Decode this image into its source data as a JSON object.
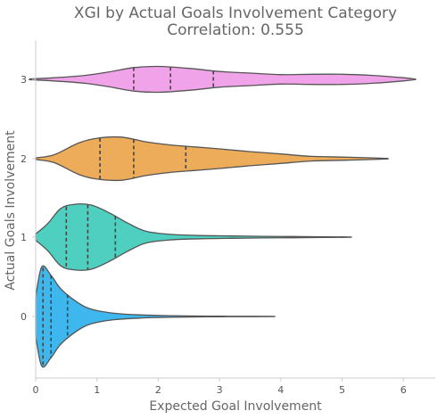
{
  "chart_data": {
    "type": "violin",
    "title": "XGI by Actual Goals Involvement Category",
    "subtitle": "Correlation: 0.555",
    "xlabel": "Expected Goal Involvement",
    "ylabel": "Actual Goals Involvement",
    "xlim": [
      0,
      6.5
    ],
    "x_ticks": [
      0,
      1,
      2,
      3,
      4,
      5,
      6
    ],
    "grid": false,
    "categories": [
      "3",
      "2",
      "1",
      "0"
    ],
    "series": [
      {
        "category": "3",
        "color": "#f0a3e8",
        "min": -0.1,
        "max": 6.2,
        "quartiles": [
          1.6,
          2.2,
          2.9
        ],
        "density": [
          [
            -0.1,
            0.01
          ],
          [
            0.3,
            0.04
          ],
          [
            0.8,
            0.1
          ],
          [
            1.2,
            0.19
          ],
          [
            1.6,
            0.3
          ],
          [
            2.0,
            0.33
          ],
          [
            2.5,
            0.28
          ],
          [
            3.0,
            0.2
          ],
          [
            3.5,
            0.16
          ],
          [
            4.0,
            0.12
          ],
          [
            4.5,
            0.13
          ],
          [
            5.0,
            0.13
          ],
          [
            5.5,
            0.1
          ],
          [
            6.0,
            0.04
          ],
          [
            6.2,
            0.005
          ]
        ]
      },
      {
        "category": "2",
        "color": "#ecac5a",
        "min": 0.0,
        "max": 5.75,
        "quartiles": [
          1.05,
          1.6,
          2.45
        ],
        "density": [
          [
            0.0,
            0.02
          ],
          [
            0.3,
            0.1
          ],
          [
            0.7,
            0.4
          ],
          [
            1.0,
            0.52
          ],
          [
            1.4,
            0.55
          ],
          [
            1.8,
            0.43
          ],
          [
            2.2,
            0.35
          ],
          [
            2.6,
            0.3
          ],
          [
            3.0,
            0.25
          ],
          [
            3.5,
            0.18
          ],
          [
            4.0,
            0.12
          ],
          [
            4.5,
            0.06
          ],
          [
            5.0,
            0.04
          ],
          [
            5.5,
            0.02
          ],
          [
            5.75,
            0.005
          ]
        ]
      },
      {
        "category": "1",
        "color": "#4fcfbf",
        "min": 0.0,
        "max": 5.15,
        "quartiles": [
          0.5,
          0.85,
          1.3
        ],
        "density": [
          [
            0.0,
            0.08
          ],
          [
            0.2,
            0.35
          ],
          [
            0.4,
            0.72
          ],
          [
            0.6,
            0.83
          ],
          [
            0.9,
            0.82
          ],
          [
            1.2,
            0.62
          ],
          [
            1.5,
            0.36
          ],
          [
            1.8,
            0.15
          ],
          [
            2.2,
            0.07
          ],
          [
            2.7,
            0.04
          ],
          [
            3.2,
            0.03
          ],
          [
            3.7,
            0.02
          ],
          [
            4.2,
            0.015
          ],
          [
            4.7,
            0.01
          ],
          [
            5.15,
            0.003
          ]
        ]
      },
      {
        "category": "0",
        "color": "#3eb7ee",
        "min": 0.0,
        "max": 3.9,
        "quartiles": [
          0.12,
          0.25,
          0.52
        ],
        "density": [
          [
            0.0,
            0.5
          ],
          [
            0.1,
            1.27
          ],
          [
            0.25,
            1.05
          ],
          [
            0.4,
            0.72
          ],
          [
            0.6,
            0.45
          ],
          [
            0.8,
            0.25
          ],
          [
            1.0,
            0.15
          ],
          [
            1.3,
            0.08
          ],
          [
            1.7,
            0.04
          ],
          [
            2.2,
            0.02
          ],
          [
            2.8,
            0.01
          ],
          [
            3.3,
            0.005
          ],
          [
            3.9,
            0.002
          ]
        ]
      }
    ]
  }
}
